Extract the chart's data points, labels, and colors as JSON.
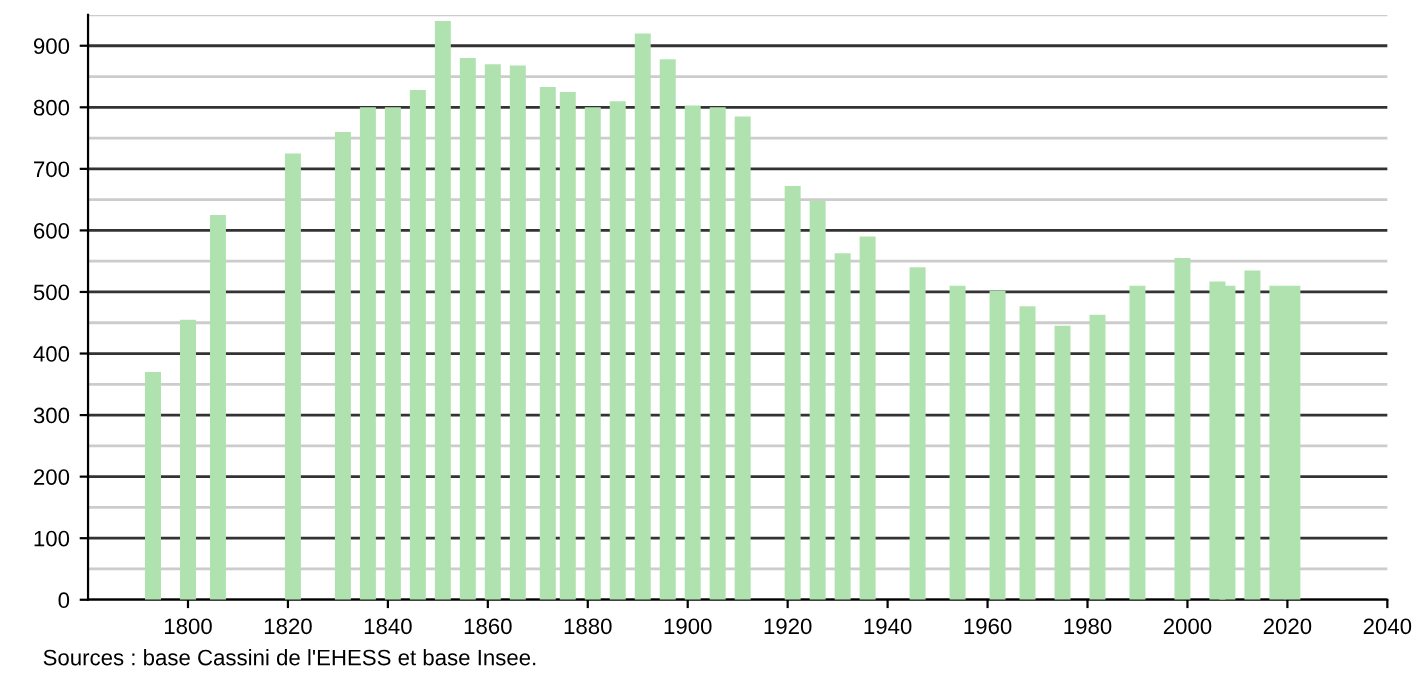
{
  "chart_data": {
    "type": "bar",
    "x": [
      1793,
      1800,
      1806,
      1821,
      1831,
      1836,
      1841,
      1846,
      1851,
      1856,
      1861,
      1866,
      1872,
      1876,
      1881,
      1886,
      1891,
      1896,
      1901,
      1906,
      1911,
      1921,
      1926,
      1931,
      1936,
      1946,
      1954,
      1962,
      1968,
      1975,
      1982,
      1990,
      1999,
      2006,
      2008,
      2013,
      2018,
      2021
    ],
    "values": [
      370,
      455,
      625,
      725,
      760,
      800,
      800,
      828,
      940,
      880,
      870,
      868,
      833,
      825,
      800,
      810,
      920,
      878,
      803,
      800,
      785,
      672,
      648,
      563,
      590,
      540,
      510,
      502,
      477,
      445,
      463,
      510,
      555,
      517,
      510,
      535,
      510,
      510
    ],
    "color": "#b0e2b0",
    "xlim": [
      1780,
      2040
    ],
    "xticks": [
      1800,
      1820,
      1840,
      1860,
      1880,
      1900,
      1920,
      1940,
      1960,
      1980,
      2000,
      2020,
      2040
    ],
    "ylim": [
      0,
      950
    ],
    "yticks": [
      0,
      100,
      200,
      300,
      400,
      500,
      600,
      700,
      800,
      900
    ],
    "grid": "y",
    "annotations": [
      "Sources : base Cassini de l'EHESS et base Insee."
    ]
  }
}
